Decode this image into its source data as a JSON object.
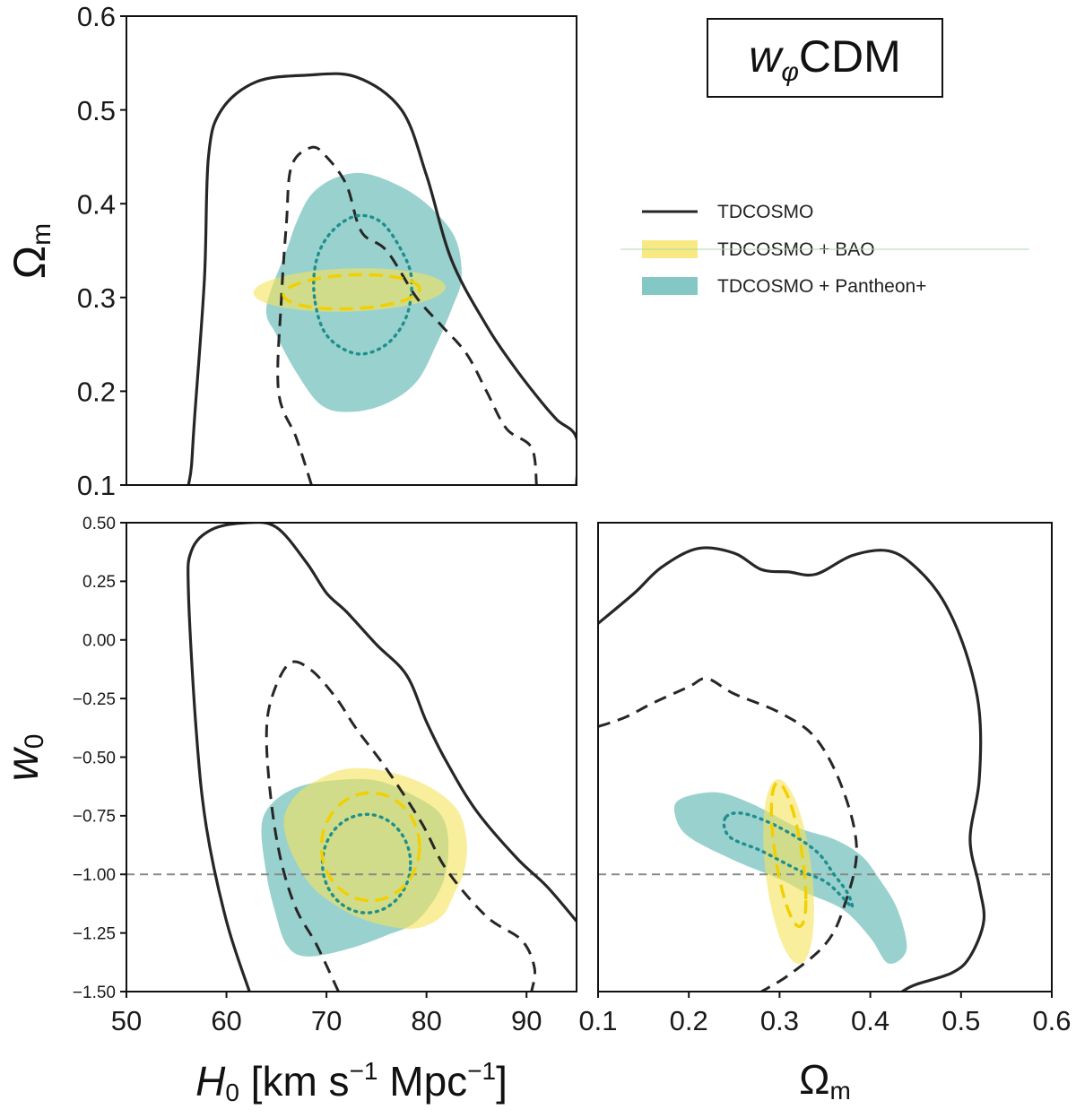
{
  "colors": {
    "tdcosmo": "#262626",
    "bao_fill": "#f5e25a",
    "bao_line": "#f2cf00",
    "pantheon_fill": "#5bb5b2",
    "pantheon_line": "#1e8f8c",
    "overlap": "#97c279",
    "reference": "#8a8a8a"
  },
  "chart_data": {
    "type": "scatter",
    "title": "w_φCDM",
    "title_main": "w",
    "title_subscript": "φ",
    "title_suffix": "CDM",
    "legend": [
      {
        "label": "TDCOSMO",
        "style": "line"
      },
      {
        "label": "TDCOSMO + BAO",
        "style": "fill"
      },
      {
        "label": "TDCOSMO + Pantheon+",
        "style": "fill"
      }
    ],
    "panels": [
      {
        "id": "H0-Om",
        "xlim": [
          50,
          95
        ],
        "ylim": [
          0.1,
          0.6
        ],
        "xticks": [],
        "xtick_labels": [],
        "yticks": [
          0.1,
          0.2,
          0.3,
          0.4,
          0.5,
          0.6
        ],
        "ytick_labels": [
          "0.1",
          "0.2",
          "0.3",
          "0.4",
          "0.5",
          "0.6"
        ],
        "xlabel": "",
        "ylabel_main": "Ω",
        "ylabel_sub": "m",
        "reference_y": null,
        "contours": {
          "tdcosmo_outer": [
            [
              56.2,
              0.1
            ],
            [
              56.5,
              0.12
            ],
            [
              56.8,
              0.17
            ],
            [
              57.8,
              0.32
            ],
            [
              58.2,
              0.45
            ],
            [
              59.5,
              0.5
            ],
            [
              63,
              0.53
            ],
            [
              68,
              0.537
            ],
            [
              73,
              0.535
            ],
            [
              77.5,
              0.5
            ],
            [
              80,
              0.43
            ],
            [
              82.5,
              0.34
            ],
            [
              86,
              0.27
            ],
            [
              88.5,
              0.23
            ],
            [
              91,
              0.195
            ],
            [
              93,
              0.17
            ],
            [
              95,
              0.15
            ],
            [
              95,
              0.1
            ]
          ],
          "tdcosmo_inner": [
            [
              68.5,
              0.1
            ],
            [
              67,
              0.15
            ],
            [
              65.2,
              0.2
            ],
            [
              65.5,
              0.3
            ],
            [
              66,
              0.38
            ],
            [
              66.5,
              0.44
            ],
            [
              68.5,
              0.46
            ],
            [
              70,
              0.45
            ],
            [
              72,
              0.42
            ],
            [
              73.5,
              0.37
            ],
            [
              76,
              0.35
            ],
            [
              79,
              0.3
            ],
            [
              81.5,
              0.27
            ],
            [
              84,
              0.24
            ],
            [
              86,
              0.2
            ],
            [
              88,
              0.16
            ],
            [
              90.5,
              0.14
            ],
            [
              91,
              0.1
            ]
          ],
          "bao_fill": {
            "cx": 72.3,
            "cy": 0.308,
            "rx": 9.6,
            "ry": 0.023,
            "tilt": 0.003
          },
          "bao_inner": {
            "cx": 72.5,
            "cy": 0.306,
            "rx": 6.8,
            "ry": 0.018,
            "tilt": 0.003
          },
          "pantheon_fill": [
            [
              64,
              0.29
            ],
            [
              65,
              0.26
            ],
            [
              67,
              0.22
            ],
            [
              69.5,
              0.185
            ],
            [
              72.5,
              0.178
            ],
            [
              76,
              0.187
            ],
            [
              79,
              0.21
            ],
            [
              81,
              0.25
            ],
            [
              82.6,
              0.29
            ],
            [
              83.5,
              0.32
            ],
            [
              83,
              0.36
            ],
            [
              81,
              0.39
            ],
            [
              78,
              0.415
            ],
            [
              74,
              0.432
            ],
            [
              71,
              0.428
            ],
            [
              68.5,
              0.41
            ],
            [
              67,
              0.38
            ],
            [
              66,
              0.35
            ]
          ],
          "pantheon_inner": [
            [
              68.8,
              0.3
            ],
            [
              69,
              0.34
            ],
            [
              70.5,
              0.37
            ],
            [
              73,
              0.387
            ],
            [
              75.5,
              0.38
            ],
            [
              77.5,
              0.35
            ],
            [
              78.5,
              0.32
            ],
            [
              78,
              0.28
            ],
            [
              76,
              0.25
            ],
            [
              73,
              0.24
            ],
            [
              70,
              0.26
            ]
          ]
        }
      },
      {
        "id": "H0-w0",
        "xlim": [
          50,
          95
        ],
        "ylim": [
          -1.5,
          0.5
        ],
        "xticks": [
          50,
          60,
          70,
          80,
          90
        ],
        "xtick_labels": [
          "50",
          "60",
          "70",
          "80",
          "90"
        ],
        "yticks": [
          -1.5,
          -1.25,
          -1.0,
          -0.75,
          -0.5,
          -0.25,
          0.0,
          0.25,
          0.5
        ],
        "ytick_labels": [
          "−1.50",
          "−1.25",
          "−1.00",
          "−0.75",
          "−0.50",
          "−0.25",
          "0.00",
          "0.25",
          "0.50"
        ],
        "xlabel_parts": [
          "H",
          "0",
          " [km s",
          "−1",
          " Mpc",
          "−1",
          "]"
        ],
        "ylabel_main": "w",
        "ylabel_sub": "0",
        "reference_y": -1.0,
        "contours": {
          "tdcosmo_outer": [
            [
              62.3,
              -1.5
            ],
            [
              60,
              -1.2
            ],
            [
              58,
              -0.8
            ],
            [
              57,
              -0.4
            ],
            [
              56.2,
              0.2
            ],
            [
              56.5,
              0.38
            ],
            [
              58.5,
              0.47
            ],
            [
              62,
              0.5
            ],
            [
              65,
              0.48
            ],
            [
              68,
              0.33
            ],
            [
              70,
              0.2
            ],
            [
              72,
              0.12
            ],
            [
              75,
              -0.02
            ],
            [
              78,
              -0.15
            ],
            [
              80,
              -0.35
            ],
            [
              82,
              -0.52
            ],
            [
              85,
              -0.73
            ],
            [
              89,
              -0.93
            ],
            [
              92,
              -1.05
            ],
            [
              95,
              -1.2
            ]
          ],
          "tdcosmo_inner": [
            [
              71.2,
              -1.5
            ],
            [
              69,
              -1.3
            ],
            [
              67,
              -1.15
            ],
            [
              65.5,
              -0.95
            ],
            [
              64.5,
              -0.7
            ],
            [
              64,
              -0.42
            ],
            [
              64.5,
              -0.25
            ],
            [
              66.3,
              -0.1
            ],
            [
              68.5,
              -0.13
            ],
            [
              71,
              -0.25
            ],
            [
              73,
              -0.38
            ],
            [
              76,
              -0.55
            ],
            [
              79.5,
              -0.78
            ],
            [
              82,
              -0.98
            ],
            [
              86,
              -1.18
            ],
            [
              89.5,
              -1.28
            ],
            [
              90.8,
              -1.4
            ],
            [
              90.5,
              -1.5
            ]
          ],
          "bao_fill": [
            [
              65.8,
              -0.75
            ],
            [
              66,
              -0.85
            ],
            [
              67,
              -0.95
            ],
            [
              68.5,
              -1.05
            ],
            [
              70.5,
              -1.12
            ],
            [
              73,
              -1.18
            ],
            [
              76,
              -1.22
            ],
            [
              79,
              -1.23
            ],
            [
              81.5,
              -1.18
            ],
            [
              82.8,
              -1.08
            ],
            [
              83.8,
              -0.98
            ],
            [
              84,
              -0.85
            ],
            [
              83,
              -0.72
            ],
            [
              80,
              -0.62
            ],
            [
              76,
              -0.56
            ],
            [
              72,
              -0.55
            ],
            [
              69,
              -0.6
            ],
            [
              67,
              -0.66
            ]
          ],
          "bao_inner": {
            "cx": 74.4,
            "cy": -0.882,
            "rx": 4.9,
            "ry": 0.23,
            "tilt": 0
          },
          "pantheon_fill": [
            [
              63.5,
              -0.8
            ],
            [
              64,
              -1.0
            ],
            [
              64.8,
              -1.15
            ],
            [
              66,
              -1.3
            ],
            [
              68,
              -1.35
            ],
            [
              72,
              -1.32
            ],
            [
              76,
              -1.26
            ],
            [
              79,
              -1.2
            ],
            [
              81.5,
              -1.05
            ],
            [
              82.2,
              -0.88
            ],
            [
              81.5,
              -0.75
            ],
            [
              79,
              -0.67
            ],
            [
              75,
              -0.6
            ],
            [
              70.5,
              -0.6
            ],
            [
              67,
              -0.63
            ],
            [
              64.5,
              -0.7
            ]
          ],
          "pantheon_inner": {
            "cx": 74,
            "cy": -0.954,
            "rx": 4.4,
            "ry": 0.21,
            "tilt": 0
          }
        }
      },
      {
        "id": "Om-w0",
        "xlim": [
          0.1,
          0.6
        ],
        "ylim": [
          -1.5,
          0.5
        ],
        "xticks": [
          0.1,
          0.2,
          0.3,
          0.4,
          0.5,
          0.6
        ],
        "xtick_labels": [
          "0.1",
          "0.2",
          "0.3",
          "0.4",
          "0.5",
          "0.6"
        ],
        "yticks": [],
        "ytick_labels": [],
        "xlabel_main": "Ω",
        "xlabel_sub": "m",
        "reference_y": -1.0,
        "contours": {
          "tdcosmo_outer": [
            [
              0.1,
              0.07
            ],
            [
              0.14,
              0.2
            ],
            [
              0.17,
              0.31
            ],
            [
              0.21,
              0.39
            ],
            [
              0.25,
              0.37
            ],
            [
              0.28,
              0.3
            ],
            [
              0.31,
              0.29
            ],
            [
              0.34,
              0.28
            ],
            [
              0.38,
              0.36
            ],
            [
              0.42,
              0.38
            ],
            [
              0.45,
              0.31
            ],
            [
              0.48,
              0.17
            ],
            [
              0.505,
              -0.05
            ],
            [
              0.52,
              -0.3
            ],
            [
              0.52,
              -0.6
            ],
            [
              0.51,
              -0.85
            ],
            [
              0.52,
              -1.05
            ],
            [
              0.525,
              -1.2
            ],
            [
              0.51,
              -1.35
            ],
            [
              0.49,
              -1.42
            ],
            [
              0.45,
              -1.47
            ],
            [
              0.435,
              -1.5
            ]
          ],
          "tdcosmo_inner": [
            [
              0.1,
              -0.37
            ],
            [
              0.13,
              -0.33
            ],
            [
              0.16,
              -0.27
            ],
            [
              0.2,
              -0.2
            ],
            [
              0.22,
              -0.165
            ],
            [
              0.25,
              -0.23
            ],
            [
              0.3,
              -0.31
            ],
            [
              0.34,
              -0.42
            ],
            [
              0.37,
              -0.64
            ],
            [
              0.385,
              -0.9
            ],
            [
              0.37,
              -1.15
            ],
            [
              0.35,
              -1.3
            ],
            [
              0.31,
              -1.43
            ],
            [
              0.28,
              -1.5
            ]
          ],
          "bao_fill": {
            "cx": 0.31,
            "cy": -0.988,
            "rx": 0.028,
            "ry": 0.36,
            "tilt": -0.016
          },
          "bao_inner": {
            "cx": 0.31,
            "cy": -0.916,
            "rx": 0.019,
            "ry": 0.24,
            "tilt": -0.019
          },
          "pantheon_fill": [
            [
              0.19,
              -0.68
            ],
            [
              0.185,
              -0.75
            ],
            [
              0.2,
              -0.84
            ],
            [
              0.25,
              -0.94
            ],
            [
              0.3,
              -1.02
            ],
            [
              0.33,
              -1.08
            ],
            [
              0.37,
              -1.15
            ],
            [
              0.4,
              -1.27
            ],
            [
              0.42,
              -1.38
            ],
            [
              0.44,
              -1.32
            ],
            [
              0.43,
              -1.15
            ],
            [
              0.41,
              -1.02
            ],
            [
              0.39,
              -0.92
            ],
            [
              0.36,
              -0.85
            ],
            [
              0.32,
              -0.8
            ],
            [
              0.27,
              -0.7
            ],
            [
              0.23,
              -0.65
            ]
          ],
          "pantheon_inner": [
            [
              0.24,
              -0.76
            ],
            [
              0.245,
              -0.84
            ],
            [
              0.28,
              -0.9
            ],
            [
              0.32,
              -0.98
            ],
            [
              0.35,
              -1.03
            ],
            [
              0.37,
              -1.1
            ],
            [
              0.38,
              -1.14
            ],
            [
              0.375,
              -1.08
            ],
            [
              0.36,
              -1.0
            ],
            [
              0.34,
              -0.9
            ],
            [
              0.3,
              -0.8
            ],
            [
              0.26,
              -0.74
            ]
          ]
        }
      }
    ]
  }
}
